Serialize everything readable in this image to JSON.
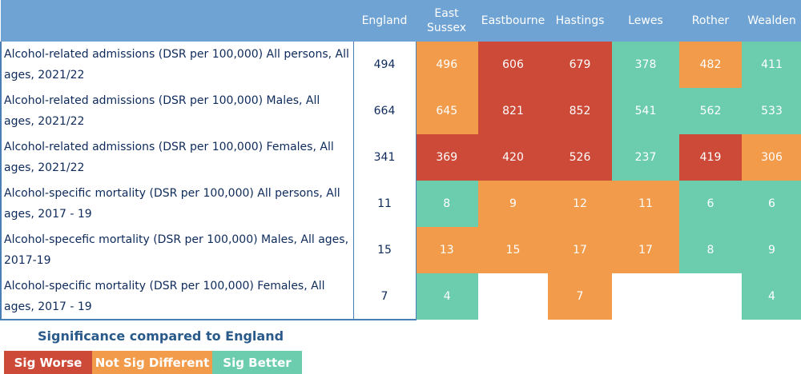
{
  "columns": [
    "England",
    "East Sussex",
    "Eastbourne",
    "Hastings",
    "Lewes",
    "Rother",
    "Wealden"
  ],
  "colors": {
    "worse": "#cc4a37",
    "similar": "#f29b4b",
    "better": "#6ccdae",
    "missing": "#ffffff",
    "header": "#6fa3d3"
  },
  "rows": [
    {
      "indicator": "Alcohol-related admissions (DSR per 100,000) All persons, All ages, 2021/22",
      "england": "494",
      "cells": [
        {
          "v": "496",
          "s": "similar"
        },
        {
          "v": "606",
          "s": "worse"
        },
        {
          "v": "679",
          "s": "worse"
        },
        {
          "v": "378",
          "s": "better"
        },
        {
          "v": "482",
          "s": "similar"
        },
        {
          "v": "411",
          "s": "better"
        }
      ]
    },
    {
      "indicator": "Alcohol-related admissions (DSR per 100,000) Males, All ages, 2021/22",
      "england": "664",
      "cells": [
        {
          "v": "645",
          "s": "similar"
        },
        {
          "v": "821",
          "s": "worse"
        },
        {
          "v": "852",
          "s": "worse"
        },
        {
          "v": "541",
          "s": "better"
        },
        {
          "v": "562",
          "s": "better"
        },
        {
          "v": "533",
          "s": "better"
        }
      ]
    },
    {
      "indicator": "Alcohol-related admissions (DSR per 100,000) Females, All ages, 2021/22",
      "england": "341",
      "cells": [
        {
          "v": "369",
          "s": "worse"
        },
        {
          "v": "420",
          "s": "worse"
        },
        {
          "v": "526",
          "s": "worse"
        },
        {
          "v": "237",
          "s": "better"
        },
        {
          "v": "419",
          "s": "worse"
        },
        {
          "v": "306",
          "s": "similar"
        }
      ]
    },
    {
      "indicator": "Alcohol-specific mortality (DSR per 100,000) All persons, All ages, 2017 - 19",
      "england": "11",
      "cells": [
        {
          "v": "8",
          "s": "better"
        },
        {
          "v": "9",
          "s": "similar"
        },
        {
          "v": "12",
          "s": "similar"
        },
        {
          "v": "11",
          "s": "similar"
        },
        {
          "v": "6",
          "s": "better"
        },
        {
          "v": "6",
          "s": "better"
        }
      ]
    },
    {
      "indicator": "Alcohol-specefic mortality (DSR per 100,000) Males, All ages, 2017-19",
      "england": "15",
      "cells": [
        {
          "v": "13",
          "s": "similar"
        },
        {
          "v": "15",
          "s": "similar"
        },
        {
          "v": "17",
          "s": "similar"
        },
        {
          "v": "17",
          "s": "similar"
        },
        {
          "v": "8",
          "s": "better"
        },
        {
          "v": "9",
          "s": "better"
        }
      ]
    },
    {
      "indicator": "Alcohol-specific mortality (DSR per 100,000) Females, All ages, 2017 - 19",
      "england": "7",
      "cells": [
        {
          "v": "4",
          "s": "better"
        },
        {
          "v": "",
          "s": "missing"
        },
        {
          "v": "7",
          "s": "similar"
        },
        {
          "v": "",
          "s": "missing"
        },
        {
          "v": "",
          "s": "missing"
        },
        {
          "v": "4",
          "s": "better"
        }
      ]
    }
  ],
  "legend": {
    "title": "Significance compared to England",
    "items": [
      {
        "label": "Sig Worse",
        "s": "worse"
      },
      {
        "label": "Not Sig Different",
        "s": "similar"
      },
      {
        "label": "Sig Better",
        "s": "better"
      }
    ]
  }
}
